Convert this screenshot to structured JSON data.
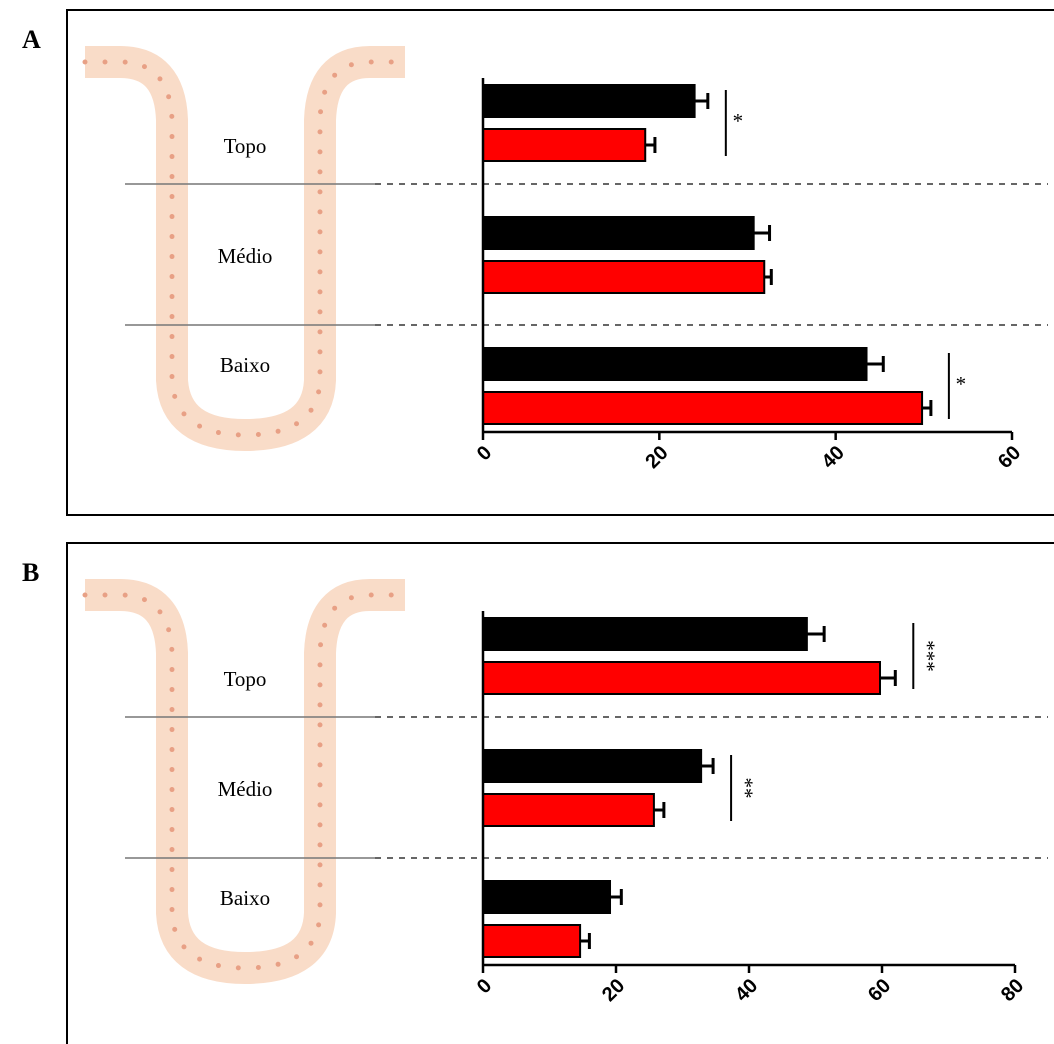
{
  "chart_data": [
    {
      "type": "bar",
      "orientation": "horizontal",
      "panel_label": "A",
      "categories": [
        "Topo",
        "Médio",
        "Baixo"
      ],
      "series": [
        {
          "color": "#000000",
          "values": [
            24.0,
            30.7,
            43.5
          ],
          "errors": [
            1.5,
            1.8,
            1.9
          ]
        },
        {
          "color": "#ff0000",
          "values": [
            18.4,
            31.9,
            49.8
          ],
          "errors": [
            1.1,
            0.8,
            1.0
          ]
        }
      ],
      "significance": [
        "*",
        null,
        "*"
      ],
      "xlim": [
        0,
        60
      ],
      "xticks": [
        0,
        20,
        40,
        60
      ]
    },
    {
      "type": "bar",
      "orientation": "horizontal",
      "panel_label": "B",
      "categories": [
        "Topo",
        "Médio",
        "Baixo"
      ],
      "series": [
        {
          "color": "#000000",
          "values": [
            48.7,
            32.8,
            19.1
          ],
          "errors": [
            2.6,
            1.8,
            1.7
          ]
        },
        {
          "color": "#ff0000",
          "values": [
            59.7,
            25.7,
            14.6
          ],
          "errors": [
            2.3,
            1.5,
            1.4
          ]
        }
      ],
      "significance": [
        "***",
        "**",
        null
      ],
      "xlim": [
        0,
        80
      ],
      "xticks": [
        0,
        20,
        40,
        60,
        80
      ]
    }
  ]
}
